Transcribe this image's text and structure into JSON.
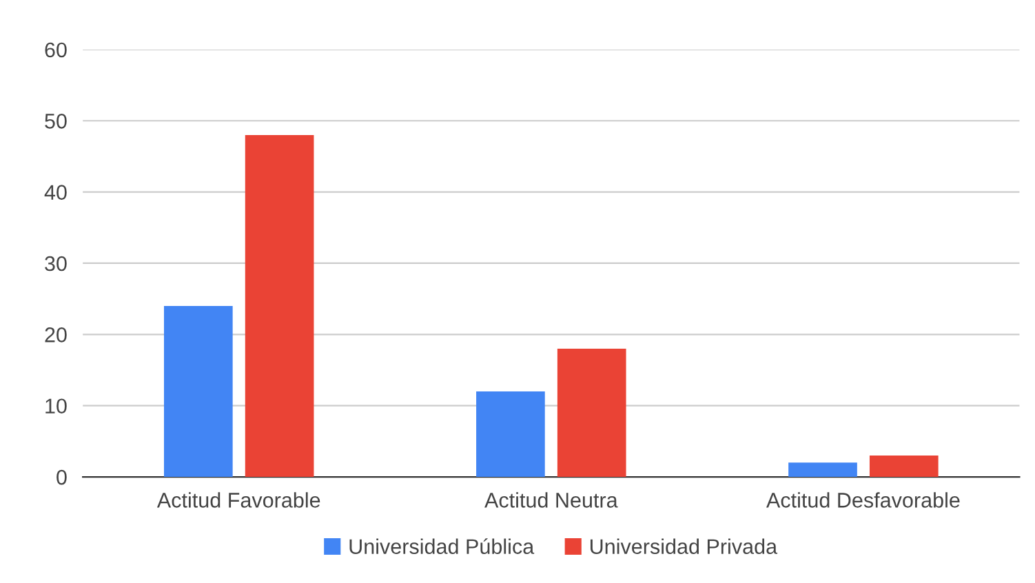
{
  "chart_data": {
    "type": "bar",
    "categories": [
      "Actitud Favorable",
      "Actitud Neutra",
      "Actitud Desfavorable"
    ],
    "series": [
      {
        "name": "Universidad Pública",
        "color": "#4285f4",
        "values": [
          24,
          12,
          2
        ]
      },
      {
        "name": "Universidad Privada",
        "color": "#ea4335",
        "values": [
          48,
          18,
          3
        ]
      }
    ],
    "ylim": [
      0,
      60
    ],
    "yticks": [
      0,
      10,
      20,
      30,
      40,
      50,
      60
    ],
    "grid": "y",
    "legend": "bottom"
  }
}
